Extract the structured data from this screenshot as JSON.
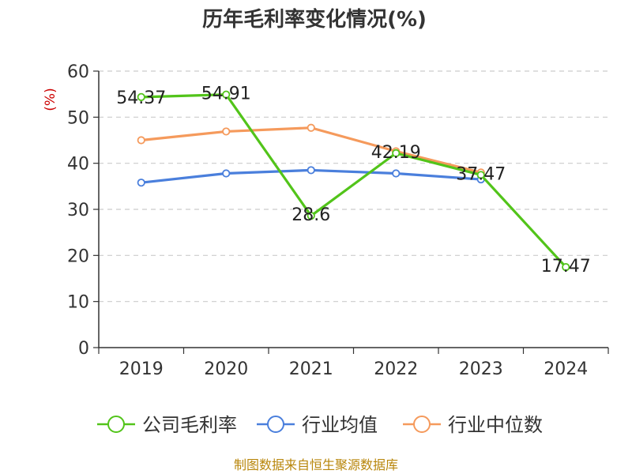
{
  "chart_data": {
    "type": "line",
    "title": "历年毛利率变化情况(%)",
    "ylabel": "(%)",
    "categories": [
      "2019",
      "2020",
      "2021",
      "2022",
      "2023",
      "2024"
    ],
    "ylim": [
      0,
      60
    ],
    "yticks": [
      0,
      10,
      20,
      30,
      40,
      50,
      60
    ],
    "grid": true,
    "legend_position": "bottom",
    "series": [
      {
        "name": "公司毛利率",
        "color": "#52c41a",
        "values": [
          54.37,
          54.91,
          28.6,
          42.19,
          37.47,
          17.47
        ],
        "labels": [
          "54.37",
          "54.91",
          "28.6",
          "42.19",
          "37.47",
          "17.47"
        ]
      },
      {
        "name": "行业均值",
        "color": "#4a7fdc",
        "values": [
          35.8,
          37.8,
          38.5,
          37.8,
          36.5,
          null
        ]
      },
      {
        "name": "行业中位数",
        "color": "#f59a5c",
        "values": [
          45.0,
          46.9,
          47.7,
          42.6,
          38.0,
          null
        ]
      }
    ]
  },
  "source": "制图数据来自恒生聚源数据库"
}
